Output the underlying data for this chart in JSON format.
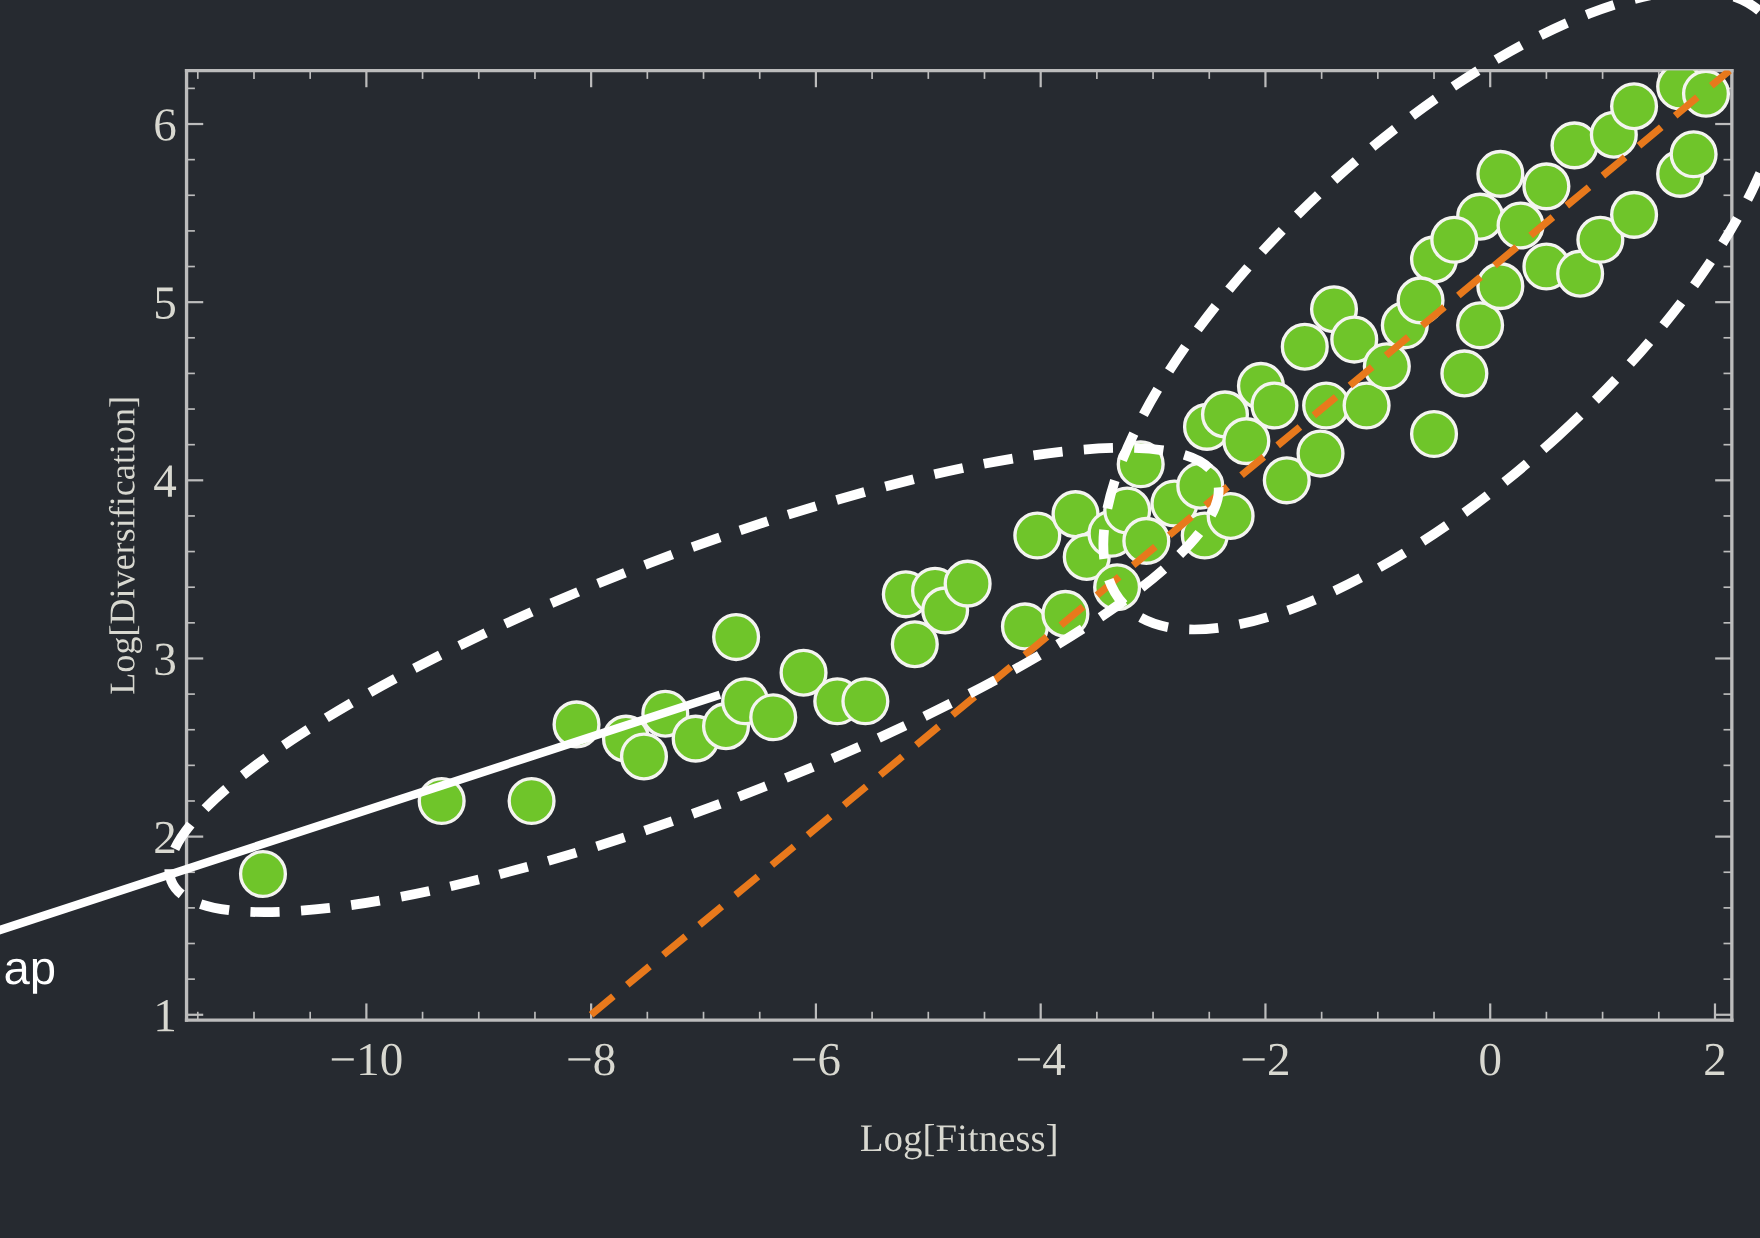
{
  "chart_data": {
    "type": "scatter",
    "xlabel": "Log[Fitness]",
    "ylabel": "Log[Diversification]",
    "xlim": [
      -11.6,
      2.15
    ],
    "ylim": [
      0.97,
      6.3
    ],
    "xticks": [
      {
        "value": -10,
        "label": "−10"
      },
      {
        "value": -8,
        "label": "−8"
      },
      {
        "value": -6,
        "label": "−6"
      },
      {
        "value": -4,
        "label": "−4"
      },
      {
        "value": -2,
        "label": "−2"
      },
      0,
      2
    ],
    "yticks": [
      1,
      2,
      3,
      4,
      5,
      6
    ],
    "grid": false,
    "legend": false,
    "annotations": [
      "ap"
    ],
    "series": [
      {
        "color": "#6fc52a",
        "marker": "circle",
        "x": [
          -10.92,
          -9.33,
          -8.53,
          -8.13,
          -7.69,
          -7.53,
          -7.34,
          -7.07,
          -6.8,
          -6.63,
          -6.71,
          -6.38,
          -6.11,
          -5.81,
          -5.56,
          -5.2,
          -5.12,
          -4.94,
          -4.85,
          -4.65,
          -4.14,
          -3.78,
          -4.03,
          -3.69,
          -3.59,
          -3.37,
          -3.32,
          -3.23,
          -3.11,
          -3.06,
          -2.81,
          -2.58,
          -2.54,
          -2.31,
          -2.52,
          -2.36,
          -2.17,
          -2.04,
          -1.92,
          -1.81,
          -1.65,
          -1.51,
          -1.46,
          -1.39,
          -1.21,
          -1.1,
          -0.92,
          -0.76,
          -0.5,
          -0.23,
          -0.09,
          -0.5,
          -0.09,
          -0.62,
          -0.32,
          0.09,
          0.5,
          0.8,
          0.5,
          0.98,
          1.28,
          0.75,
          1.1,
          1.69,
          1.28,
          1.69,
          1.92,
          1.81,
          0.27,
          0.09
        ],
        "values": [
          1.79,
          2.2,
          2.2,
          2.63,
          2.55,
          2.45,
          2.69,
          2.55,
          2.62,
          2.76,
          3.12,
          2.67,
          2.92,
          2.76,
          2.76,
          3.36,
          3.08,
          3.38,
          3.27,
          3.42,
          3.18,
          3.25,
          3.69,
          3.81,
          3.57,
          3.7,
          3.4,
          3.83,
          4.09,
          3.66,
          3.87,
          3.97,
          3.69,
          3.8,
          4.3,
          4.37,
          4.22,
          4.53,
          4.42,
          4.0,
          4.75,
          4.15,
          4.42,
          4.96,
          4.79,
          4.42,
          4.64,
          4.87,
          4.26,
          4.6,
          4.87,
          5.24,
          5.48,
          5.01,
          5.35,
          5.09,
          5.2,
          5.16,
          5.65,
          5.35,
          5.49,
          5.88,
          5.94,
          5.72,
          6.1,
          6.21,
          6.17,
          5.83,
          5.43,
          5.72
        ]
      },
      {
        "type": "line",
        "color": "#e8791c",
        "line_style": "dashed",
        "marker": "none",
        "x": [
          -8.0,
          2.13
        ],
        "values": [
          1.0,
          6.3
        ]
      }
    ]
  }
}
